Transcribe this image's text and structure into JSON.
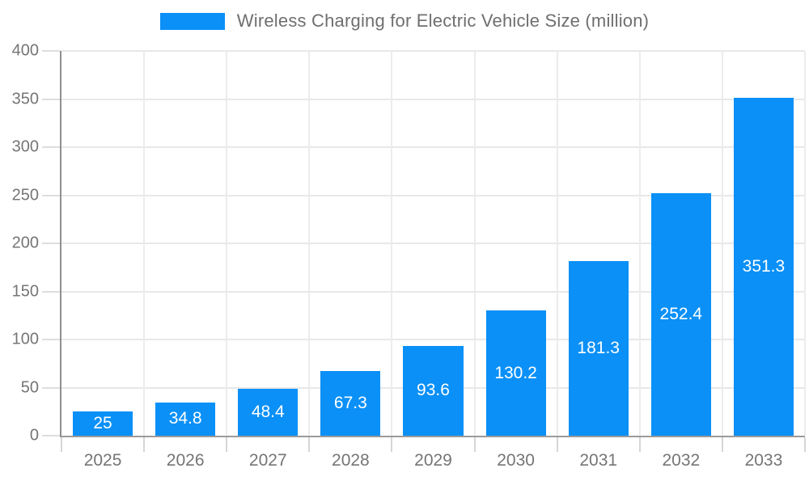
{
  "chart_data": {
    "type": "bar",
    "title": "Wireless Charging for Electric Vehicle Size (million)",
    "categories": [
      "2025",
      "2026",
      "2027",
      "2028",
      "2029",
      "2030",
      "2031",
      "2032",
      "2033"
    ],
    "values": [
      25,
      34.8,
      48.4,
      67.3,
      93.6,
      130.2,
      181.3,
      252.4,
      351.3
    ],
    "xlabel": "",
    "ylabel": "",
    "ylim": [
      0,
      400
    ],
    "ytick_step": 50,
    "ytick_labels": [
      "0",
      "50",
      "100",
      "150",
      "200",
      "250",
      "300",
      "350",
      "400"
    ],
    "grid": true,
    "legend_position": "top"
  },
  "colors": {
    "bar": "#0a90f7",
    "bar_label": "#ffffff",
    "axis_text": "#757575",
    "title_text": "#6f6f6f",
    "gridline": "#e8e8e8",
    "axis_line": "#8f8f8f",
    "background": "#ffffff"
  }
}
